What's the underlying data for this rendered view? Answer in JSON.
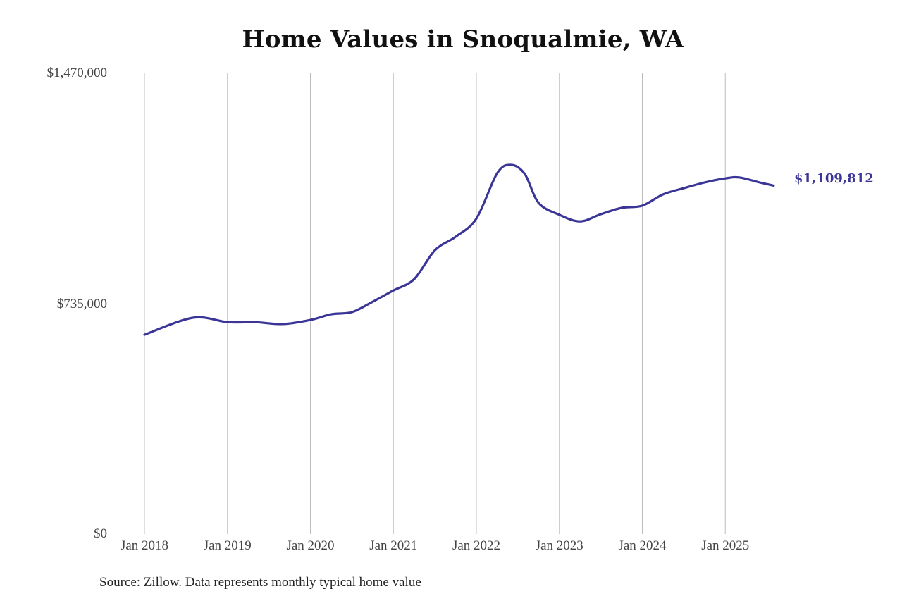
{
  "chart_data": {
    "type": "line",
    "title": "Home Values in Snoqualmie, WA",
    "xlabel": "",
    "ylabel": "",
    "ylim": [
      0,
      1470000
    ],
    "y_ticks": [
      {
        "value": 0,
        "label": "$0"
      },
      {
        "value": 735000,
        "label": "$735,000"
      },
      {
        "value": 1470000,
        "label": "$1,470,000"
      }
    ],
    "x_ticks": [
      "Jan 2018",
      "Jan 2019",
      "Jan 2020",
      "Jan 2021",
      "Jan 2022",
      "Jan 2023",
      "Jan 2024",
      "Jan 2025"
    ],
    "grid": {
      "vertical": true,
      "horizontal": false
    },
    "legend": null,
    "series": [
      {
        "name": "Typical home value",
        "color": "#3a3596",
        "end_label": "$1,109,812",
        "x": [
          "2018-01",
          "2018-08",
          "2019-01",
          "2019-05",
          "2019-09",
          "2020-01",
          "2020-04",
          "2020-07",
          "2020-10",
          "2021-01",
          "2021-04",
          "2021-07",
          "2021-10",
          "2022-01",
          "2022-04",
          "2022-06",
          "2022-08",
          "2022-10",
          "2023-01",
          "2023-04",
          "2023-07",
          "2023-10",
          "2024-01",
          "2024-04",
          "2024-07",
          "2024-10",
          "2025-01",
          "2025-03",
          "2025-06",
          "2025-08"
        ],
        "values": [
          635000,
          689000,
          675000,
          675000,
          669000,
          682000,
          700000,
          707000,
          740000,
          776000,
          812000,
          904000,
          947000,
          1005000,
          1149000,
          1176000,
          1147000,
          1055000,
          1017000,
          996000,
          1019000,
          1039000,
          1046000,
          1082000,
          1102000,
          1120000,
          1133000,
          1136000,
          1120000,
          1109812
        ]
      }
    ],
    "source": "Source: Zillow. Data represents monthly typical home value"
  },
  "colors": {
    "line": "#3a3596",
    "grid": "#bdbdbd",
    "title": "#111111",
    "axis_text": "#444444"
  }
}
